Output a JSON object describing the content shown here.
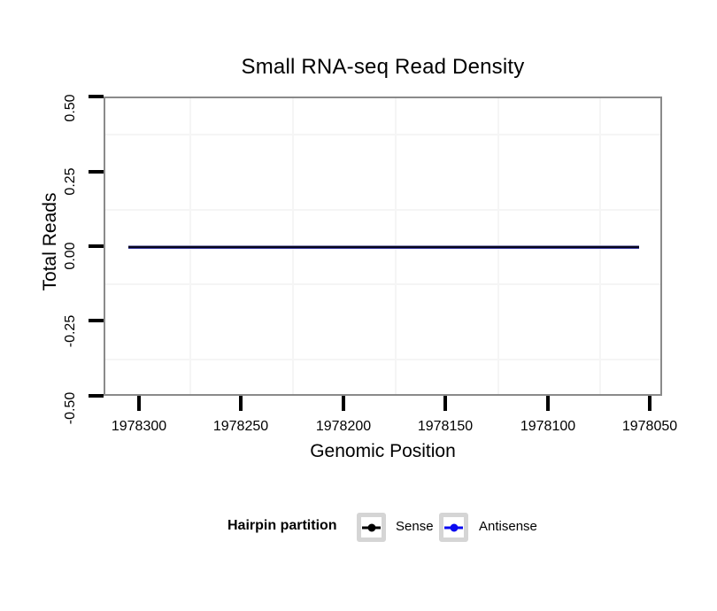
{
  "title": "Small RNA-seq Read Density",
  "axes": {
    "x": {
      "label": "Genomic Position",
      "ticks": [
        "1978300",
        "1978250",
        "1978200",
        "1978150",
        "1978100",
        "1978050"
      ]
    },
    "y": {
      "label": "Total Reads",
      "ticks": [
        "0.50",
        "0.25",
        "0.00",
        "-0.25",
        "-0.50"
      ]
    }
  },
  "legend": {
    "title": "Hairpin partition",
    "items": [
      {
        "label": "Sense",
        "color": "#000000"
      },
      {
        "label": "Antisense",
        "color": "#0a0af0"
      }
    ]
  },
  "colors": {
    "panel_border": "#8a8a8a",
    "minor_grid": "#f5f5f5",
    "tick": "#000000",
    "sense_line": "#000000",
    "antisense_line": "#0a0af0",
    "overlapped_line_appearance": "#07071d",
    "legend_key_border": "#d5d5d5",
    "background": "#ffffff"
  },
  "chart_data": {
    "type": "line",
    "title": "Small RNA-seq Read Density",
    "xlabel": "Genomic Position",
    "ylabel": "Total Reads",
    "x_axis": {
      "tick_values": [
        1978300,
        1978250,
        1978200,
        1978150,
        1978100,
        1978050
      ],
      "reversed": true,
      "shown_range": [
        1978305,
        1978044
      ]
    },
    "ylim": [
      -0.5,
      0.5
    ],
    "y_tick_values": [
      0.5,
      0.25,
      0.0,
      -0.25,
      -0.5
    ],
    "series": [
      {
        "name": "Sense",
        "color": "#000000",
        "y_constant": 0,
        "x_start": 1978305,
        "x_end": 1978045,
        "note": "flat line at y=0 across full x range"
      },
      {
        "name": "Antisense",
        "color": "#0a0af0",
        "y_constant": 0,
        "x_start": 1978305,
        "x_end": 1978045,
        "note": "flat line at y=0, overlaps Sense line"
      }
    ],
    "grid": "minor gridlines only (midpoints between ticks), very light gray; white panel with gray border",
    "legend_position": "bottom",
    "legend_title": "Hairpin partition"
  }
}
